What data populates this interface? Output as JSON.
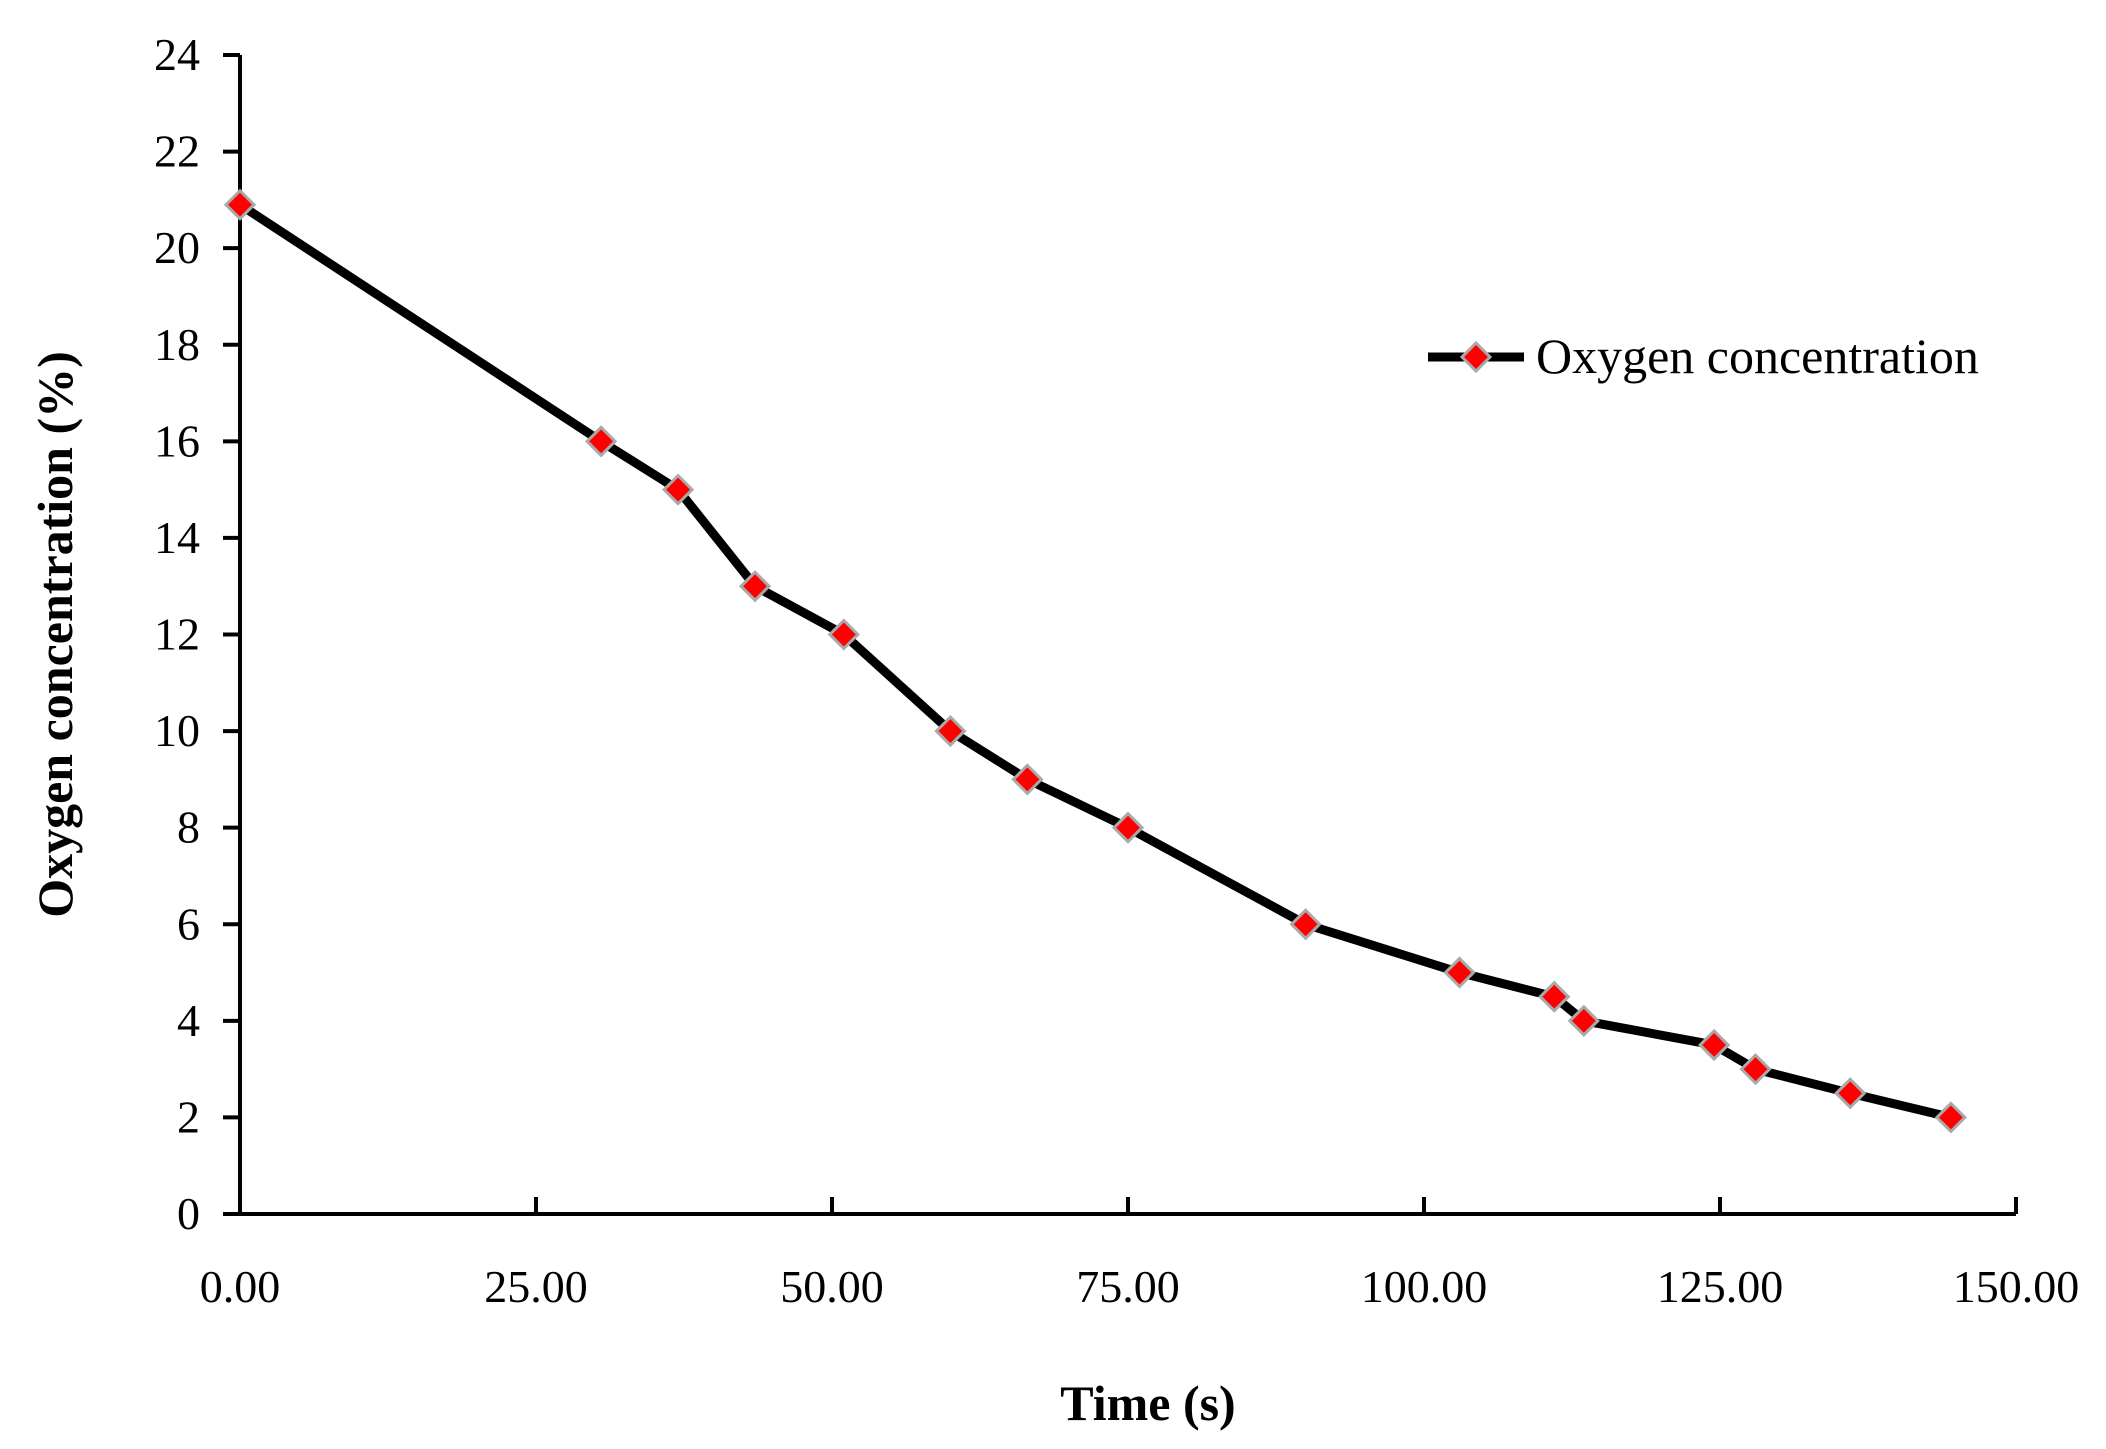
{
  "chart_data": {
    "type": "line",
    "title": "",
    "xlabel": "Time (s)",
    "ylabel": "Oxygen concentration (%)",
    "xlim": [
      0,
      150
    ],
    "ylim": [
      0,
      24
    ],
    "x_ticks": [
      0,
      25,
      50,
      75,
      100,
      125,
      150
    ],
    "x_tick_labels": [
      "0.00",
      "25.00",
      "50.00",
      "75.00",
      "100.00",
      "125.00",
      "150.00"
    ],
    "y_ticks": [
      0,
      2,
      4,
      6,
      8,
      10,
      12,
      14,
      16,
      18,
      20,
      22,
      24
    ],
    "y_tick_labels": [
      "0",
      "2",
      "4",
      "6",
      "8",
      "10",
      "12",
      "14",
      "16",
      "18",
      "20",
      "22",
      "24"
    ],
    "grid": false,
    "legend_position": "right",
    "series": [
      {
        "name": "Oxygen concentration",
        "line_color": "#000000",
        "marker": "diamond",
        "marker_color": "#ff0000",
        "x": [
          0,
          30.5,
          37,
          43.5,
          51,
          60,
          66.5,
          75,
          90,
          103,
          111,
          113.5,
          124.5,
          128,
          136,
          144.5
        ],
        "y": [
          20.9,
          16,
          15,
          13,
          12,
          10,
          9,
          8,
          6,
          5,
          4.5,
          4,
          3.5,
          3,
          2.5,
          2
        ]
      }
    ]
  }
}
